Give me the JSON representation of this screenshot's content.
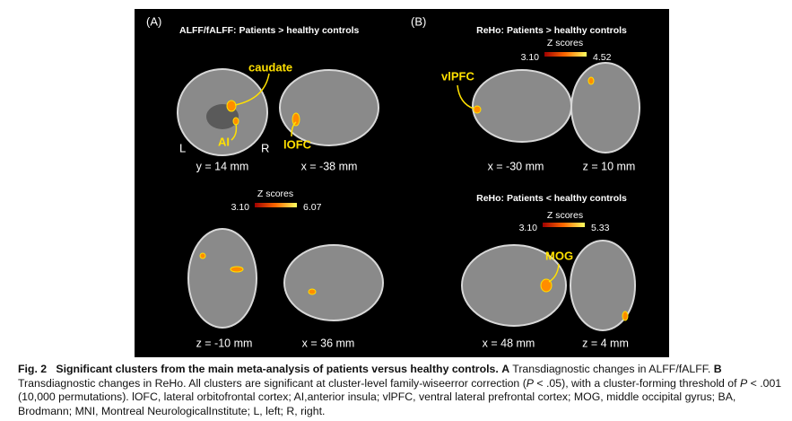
{
  "panels": {
    "a": {
      "letter": "(A)",
      "title": "ALFF/fALFF: Patients > healthy controls",
      "labels": [
        "caudate",
        "AI",
        "L",
        "R",
        "lOFC"
      ],
      "slices": [
        "y = 14 mm",
        "x = -38 mm",
        "z = -10 mm",
        "x = 36 mm"
      ],
      "colorbar": {
        "title": "Z scores",
        "min": "3.10",
        "max": "6.07"
      }
    },
    "b": {
      "letter": "(B)",
      "title_top": "ReHo: Patients > healthy controls",
      "colorbar_top": {
        "title": "Z scores",
        "min": "3.10",
        "max": "4.52"
      },
      "labels_top": [
        "vlPFC"
      ],
      "slices_top": [
        "x = -30 mm",
        "z = 10 mm"
      ],
      "title_bottom": "ReHo: Patients < healthy controls",
      "colorbar_bottom": {
        "title": "Z scores",
        "min": "3.10",
        "max": "5.33"
      },
      "labels_bottom": [
        "MOG"
      ],
      "slices_bottom": [
        "x = 48 mm",
        "z = 4 mm"
      ]
    }
  },
  "caption": {
    "segments": [
      "Fig. 2",
      "Significant clusters from the main meta-analysis of patients versus healthy controls.",
      "A",
      " Transdiagnostic changes in ALFF/fALFF.",
      "B",
      " Transdiagnostic changes in ReHo. All clusters are significant at cluster-level family-wiseerror correction (",
      "P",
      " < .05), with a cluster-forming threshold of ",
      "P",
      " < .001 (10,000 permutations). lOFC, lateral orbitofrontal cortex; AI,anterior insula; vlPFC, ventral lateral prefrontal cortex; MOG, middle occipital gyrus; BA, Brodmann; MNI, Montreal NeurologicalInstitute; L, left; R, right."
    ]
  }
}
